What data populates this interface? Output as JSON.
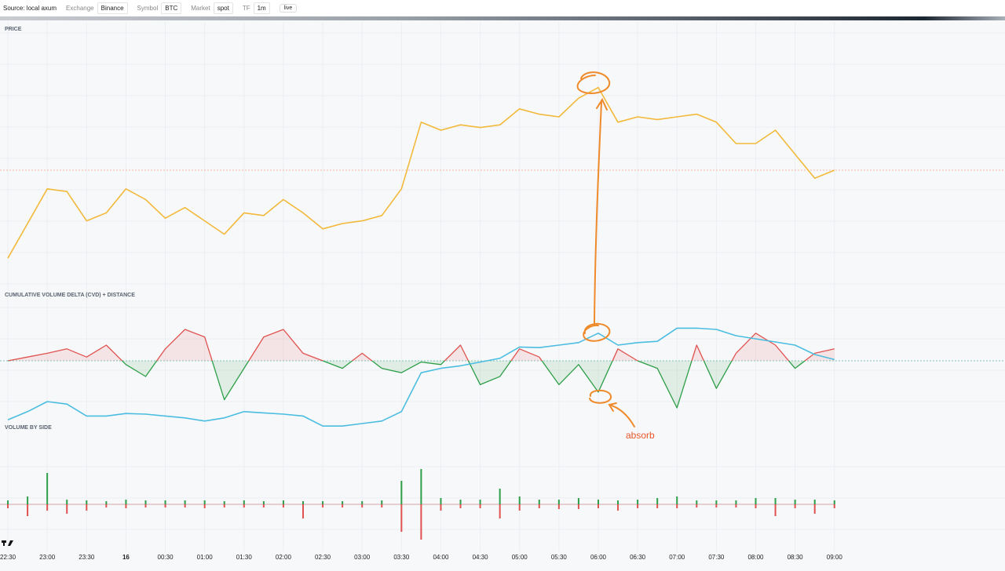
{
  "toolbar": {
    "source": "Source: local axum",
    "fields": [
      {
        "label": "Exchange",
        "value": "Binance"
      },
      {
        "label": "Symbol",
        "value": "BTC"
      },
      {
        "label": "Market",
        "value": "spot"
      },
      {
        "label": "TF",
        "value": "1m"
      }
    ],
    "status": "live"
  },
  "annotation": "absorb",
  "chart_data": [
    {
      "type": "line",
      "title": "PRICE",
      "color": "#f2b93b",
      "x": [
        0,
        15,
        30,
        45,
        60,
        75,
        90,
        105,
        120,
        135,
        150,
        165,
        180,
        195,
        210,
        225,
        240,
        255,
        270,
        285,
        300,
        315,
        330,
        345,
        360,
        375,
        390,
        405,
        420,
        435,
        450,
        465,
        480,
        495,
        510,
        525,
        540,
        555,
        570,
        585,
        600,
        615,
        630
      ],
      "values": [
        12,
        25,
        38,
        37,
        26,
        29,
        38,
        34,
        27,
        31,
        26,
        21,
        29,
        28,
        34,
        29,
        23,
        25,
        26,
        28,
        38,
        63,
        60,
        62,
        61,
        62,
        68,
        66,
        65,
        72,
        76,
        63,
        65,
        64,
        65,
        66,
        63,
        55,
        55,
        60,
        51,
        42,
        45
      ],
      "xlim": [
        -6,
        760
      ],
      "ylim": [
        0,
        100
      ]
    },
    {
      "type": "cvd",
      "title": "CUMULATIVE VOLUME DELTA (CVD) + DISTANCE",
      "x": [
        0,
        15,
        30,
        45,
        60,
        75,
        90,
        105,
        120,
        135,
        150,
        165,
        180,
        195,
        210,
        225,
        240,
        255,
        270,
        285,
        300,
        315,
        330,
        345,
        360,
        375,
        390,
        405,
        420,
        435,
        450,
        465,
        480,
        495,
        510,
        525,
        540,
        555,
        570,
        585,
        600,
        615,
        630
      ],
      "series": [
        {
          "colors": {
            "positive": "#e0524f",
            "negative": "#2e9e48"
          },
          "values": [
            0,
            6,
            12,
            19,
            6,
            25,
            -6,
            -25,
            19,
            50,
            38,
            -62,
            -12,
            38,
            50,
            12,
            0,
            -12,
            12,
            -12,
            -19,
            -2,
            -6,
            25,
            -38,
            -25,
            19,
            6,
            -38,
            -6,
            -50,
            19,
            0,
            -12,
            -75,
            25,
            -44,
            12,
            44,
            25,
            -12,
            12,
            19
          ]
        },
        {
          "color": "#4bbde0",
          "values": [
            -94,
            -81,
            -65,
            -69,
            -88,
            -88,
            -84,
            -85,
            -88,
            -91,
            -96,
            -91,
            -81,
            -83,
            -85,
            -88,
            -104,
            -104,
            -100,
            -96,
            -81,
            -19,
            -12,
            -8,
            -2,
            4,
            22,
            21,
            25,
            29,
            44,
            25,
            29,
            31,
            52,
            52,
            50,
            40,
            35,
            30,
            25,
            10,
            2
          ]
        }
      ],
      "xlim": [
        -6,
        760
      ],
      "ylim": [
        -110,
        100
      ]
    },
    {
      "type": "bar",
      "title": "VOLUME BY SIDE",
      "x": [
        0,
        15,
        30,
        45,
        60,
        75,
        90,
        105,
        120,
        135,
        150,
        165,
        180,
        195,
        210,
        225,
        240,
        255,
        270,
        285,
        300,
        315,
        330,
        345,
        360,
        375,
        390,
        405,
        420,
        435,
        450,
        465,
        480,
        495,
        510,
        525,
        540,
        555,
        570,
        585,
        600,
        615,
        630
      ],
      "series": [
        {
          "color": "#2e9e48",
          "values": [
            5,
            10,
            40,
            6,
            5,
            4,
            6,
            5,
            5,
            5,
            5,
            4,
            5,
            4,
            5,
            4,
            4,
            4,
            4,
            5,
            30,
            45,
            8,
            6,
            6,
            20,
            10,
            6,
            6,
            8,
            6,
            5,
            6,
            8,
            10,
            5,
            5,
            5,
            8,
            8,
            6,
            6,
            5
          ]
        },
        {
          "color": "#e0524f",
          "values": [
            -5,
            -15,
            -8,
            -12,
            -8,
            -4,
            -5,
            -4,
            -4,
            -4,
            -5,
            -4,
            -4,
            -4,
            -4,
            -18,
            -4,
            -4,
            -4,
            -4,
            -35,
            -45,
            -8,
            -5,
            -5,
            -18,
            -8,
            -5,
            -6,
            -6,
            -5,
            -8,
            -5,
            -5,
            -5,
            -4,
            -4,
            -4,
            -5,
            -15,
            -5,
            -12,
            -5
          ]
        }
      ],
      "xlim": [
        -6,
        760
      ],
      "ylim": [
        -60,
        60
      ],
      "xticks": [
        {
          "value": 0,
          "label": "22:30"
        },
        {
          "value": 30,
          "label": "23:00"
        },
        {
          "value": 60,
          "label": "23:30"
        },
        {
          "value": 90,
          "label": "16"
        },
        {
          "value": 120,
          "label": "00:30"
        },
        {
          "value": 150,
          "label": "01:00"
        },
        {
          "value": 180,
          "label": "01:30"
        },
        {
          "value": 210,
          "label": "02:00"
        },
        {
          "value": 240,
          "label": "02:30"
        },
        {
          "value": 270,
          "label": "03:00"
        },
        {
          "value": 300,
          "label": "03:30"
        },
        {
          "value": 330,
          "label": "04:00"
        },
        {
          "value": 360,
          "label": "04:30"
        },
        {
          "value": 390,
          "label": "05:00"
        },
        {
          "value": 420,
          "label": "05:30"
        },
        {
          "value": 450,
          "label": "06:00"
        },
        {
          "value": 480,
          "label": "06:30"
        },
        {
          "value": 510,
          "label": "07:00"
        },
        {
          "value": 540,
          "label": "07:30"
        },
        {
          "value": 570,
          "label": "08:00"
        },
        {
          "value": 600,
          "label": "08:30"
        },
        {
          "value": 630,
          "label": "09:00"
        }
      ]
    }
  ]
}
